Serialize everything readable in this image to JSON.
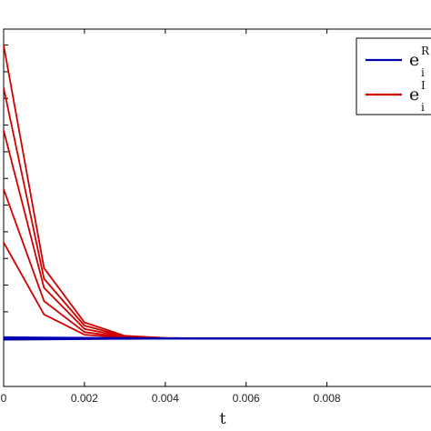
{
  "chart_data": {
    "type": "line",
    "title": "",
    "xlabel": "t",
    "ylabel": "",
    "xlim": [
      0,
      0.0108
    ],
    "ylim": [
      -0.9,
      5.8
    ],
    "x_ticks": [
      0,
      0.002,
      0.004,
      0.006,
      0.008
    ],
    "x_tick_labels": [
      "0",
      "0.002",
      "0.004",
      "0.006",
      "0.008"
    ],
    "grid": false,
    "legend_position": "top-right",
    "legend": [
      {
        "base": "e",
        "sup": "R",
        "sub": "i",
        "color": "#0000b0"
      },
      {
        "base": "e",
        "sup": "I",
        "sub": "i",
        "color": "#d00000"
      }
    ],
    "x": [
      0,
      0.001,
      0.002,
      0.003,
      0.004,
      0.005,
      0.006,
      0.007,
      0.008,
      0.009,
      0.01,
      0.011
    ],
    "series": [
      {
        "group": "R",
        "color": "#0000b0",
        "values": [
          0.02,
          0.015,
          0.01,
          0.005,
          0.002,
          0,
          0,
          0,
          0,
          0,
          0,
          0
        ]
      },
      {
        "group": "R",
        "color": "#0000b0",
        "values": [
          -0.02,
          -0.015,
          -0.01,
          -0.005,
          -0.002,
          0,
          0,
          0,
          0,
          0,
          0,
          0
        ]
      },
      {
        "group": "R",
        "color": "#0000b0",
        "values": [
          0.01,
          0.008,
          0.005,
          0.003,
          0.001,
          0,
          0,
          0,
          0,
          0,
          0,
          0
        ]
      },
      {
        "group": "I",
        "color": "#d00000",
        "values": [
          5.5,
          1.32,
          0.3,
          0.05,
          0.01,
          0,
          0,
          0,
          0,
          0,
          0,
          0
        ]
      },
      {
        "group": "I",
        "color": "#d00000",
        "values": [
          4.7,
          1.12,
          0.24,
          0.04,
          0.008,
          0,
          0,
          0,
          0,
          0,
          0,
          0
        ]
      },
      {
        "group": "I",
        "color": "#d00000",
        "values": [
          3.9,
          0.95,
          0.18,
          0.03,
          0.006,
          0,
          0,
          0,
          0,
          0,
          0,
          0
        ]
      },
      {
        "group": "I",
        "color": "#d00000",
        "values": [
          2.8,
          0.7,
          0.12,
          0.02,
          0.004,
          0,
          0,
          0,
          0,
          0,
          0,
          0
        ]
      },
      {
        "group": "I",
        "color": "#d00000",
        "values": [
          1.8,
          0.45,
          0.07,
          0.015,
          0.003,
          0,
          0,
          0,
          0,
          0,
          0,
          0
        ]
      }
    ]
  }
}
